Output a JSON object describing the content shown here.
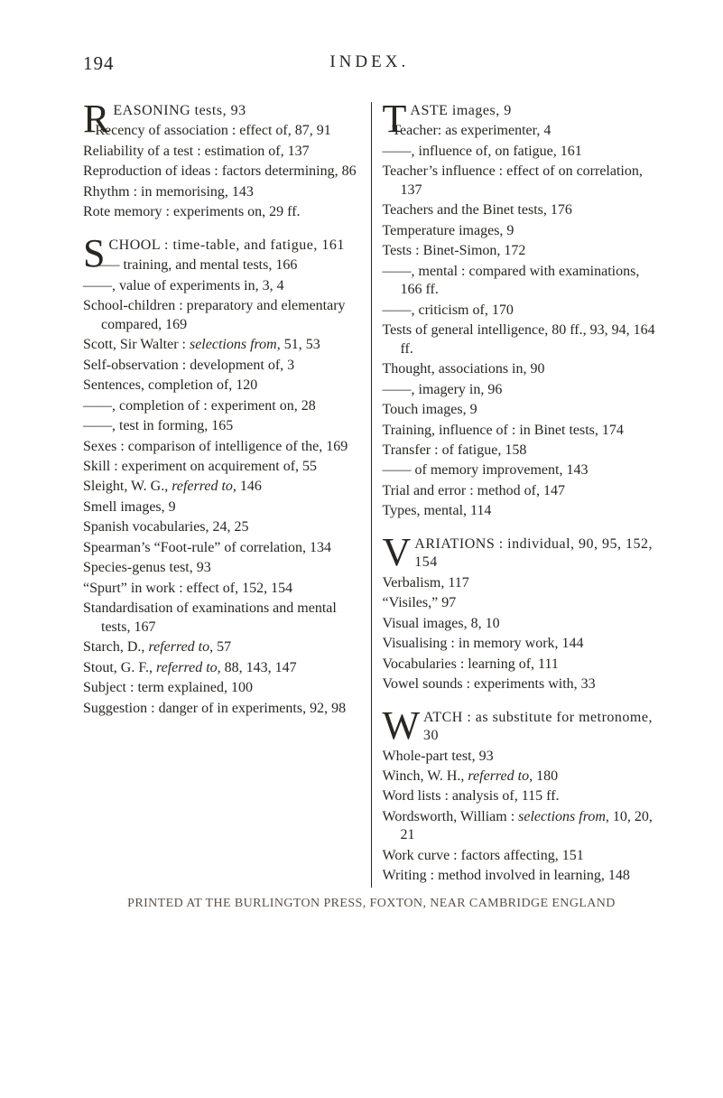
{
  "page_number": "194",
  "running_title": "INDEX.",
  "col1": {
    "block_R": {
      "initial": "R",
      "lines": [
        "EASONING tests, 93",
        "Recency of association : effect of, 87, 91",
        "Reliability of a test : estimation of, 137",
        "Reproduction of ideas : factors determining, 86",
        "Rhythm : in memorising, 143",
        "Rote memory : experiments on, 29 ff."
      ]
    },
    "block_S": {
      "initial": "S",
      "lines": [
        "CHOOL : time-table, and fatigue, 161",
        "—— training, and mental tests, 166",
        "——, value of experiments in, 3, 4",
        "School-children : preparatory and elementary compared, 169",
        "Scott, Sir Walter : ",
        "Self-observation : development of, 3",
        "Sentences, completion of, 120",
        "——, completion of : experiment on, 28",
        "——, test in forming, 165",
        "Sexes : comparison of intelligence of the, 169",
        "Skill : experiment on acquirement of, 55",
        "Sleight, W. G., ",
        "Smell images, 9",
        "Spanish vocabularies, 24, 25",
        "Spearman’s “Foot-rule” of correlation, 134",
        "Species-genus test, 93",
        "“Spurt” in work : effect of, 152, 154",
        "Standardisation of examinations and mental tests, 167",
        "Starch, D., ",
        "Stout, G. F., ",
        "Subject : term explained, 100",
        "Suggestion : danger of in experiments, 92, 98"
      ],
      "scott_italic": "selections from, ",
      "scott_tail": "51, 53",
      "sleight_italic": "referred to, ",
      "sleight_tail": "146",
      "starch_italic": "referred to, ",
      "starch_tail": "57",
      "stout_italic": "referred to, ",
      "stout_tail": "88, 143, 147"
    }
  },
  "col2": {
    "block_T": {
      "initial": "T",
      "lines": [
        "ASTE images, 9",
        "Teacher: as experimenter, 4",
        "——, influence of, on fatigue, 161",
        "Teacher’s influence : effect of on correlation, 137",
        "Teachers and the Binet tests, 176",
        "Temperature images, 9",
        "Tests : Binet-Simon, 172",
        "——, mental : compared with examinations, 166 ff.",
        "——, criticism of, 170",
        "Tests of general intelligence, 80 ff., 93, 94, 164 ff.",
        "Thought, associations in, 90",
        "——, imagery in, 96",
        "Touch images, 9",
        "Training, influence of : in Binet tests, 174",
        "Transfer : of fatigue, 158",
        "—— of memory improvement, 143",
        "Trial and error : method of, 147",
        "Types, mental, 114"
      ]
    },
    "block_V": {
      "initial": "V",
      "lines": [
        "ARIATIONS : individual, 90, 95, 152, 154",
        "Verbalism, 117",
        "“Visiles,” 97",
        "Visual images, 8, 10",
        "Visualising : in memory work, 144",
        "Vocabularies : learning of, 111",
        "Vowel sounds : experiments with, 33"
      ]
    },
    "block_W": {
      "initial": "W",
      "lines": [
        "ATCH : as substitute for metronome, 30",
        "Whole-part test, 93",
        "Winch, W. H., ",
        "Word lists : analysis of, 115 ff.",
        "Wordsworth, William : ",
        "Work curve : factors affecting, 151",
        "Writing : method involved in learning, 148"
      ],
      "winch_italic": "referred to, ",
      "winch_tail": "180",
      "wordsworth_italic": "selections from, ",
      "wordsworth_tail": "10, 20, 21"
    }
  },
  "imprint": "PRINTED AT THE BURLINGTON PRESS, FOXTON, NEAR CAMBRIDGE ENGLAND"
}
